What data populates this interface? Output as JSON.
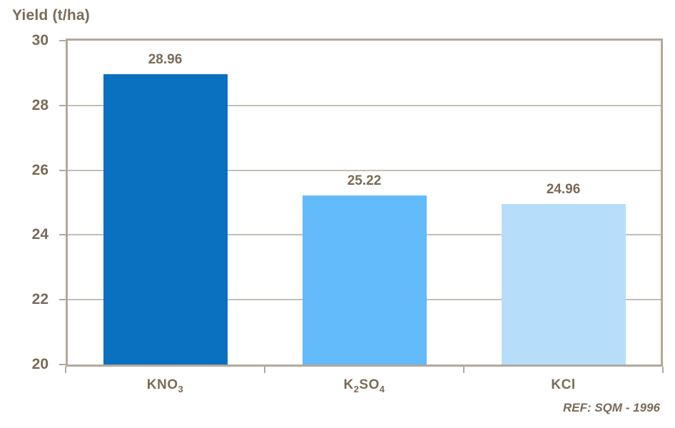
{
  "chart_data": {
    "type": "bar",
    "title": "",
    "ylabel": "Yield (t/ha)",
    "xlabel": "",
    "categories": [
      "KNO3",
      "K2SO4",
      "KCl"
    ],
    "category_segments": [
      [
        {
          "text": "KNO"
        },
        {
          "text": "3",
          "sub": true
        }
      ],
      [
        {
          "text": "K"
        },
        {
          "text": "2",
          "sub": true
        },
        {
          "text": "SO"
        },
        {
          "text": "4",
          "sub": true
        }
      ],
      [
        {
          "text": "KCl"
        }
      ]
    ],
    "values": [
      28.96,
      25.22,
      24.96
    ],
    "value_labels": [
      "28.96",
      "25.22",
      "24.96"
    ],
    "bar_colors": [
      "#0a70c0",
      "#64bbfb",
      "#b6defb"
    ],
    "ylim": [
      20,
      30
    ],
    "yticks": [
      20,
      22,
      24,
      26,
      28,
      30
    ],
    "grid": true,
    "legend": "none",
    "footnote": "REF: SQM - 1996"
  },
  "colors": {
    "text": "#7a6a58",
    "frame": "#b2a89b",
    "gridline": "#c4beb4",
    "background": "#ffffff"
  }
}
